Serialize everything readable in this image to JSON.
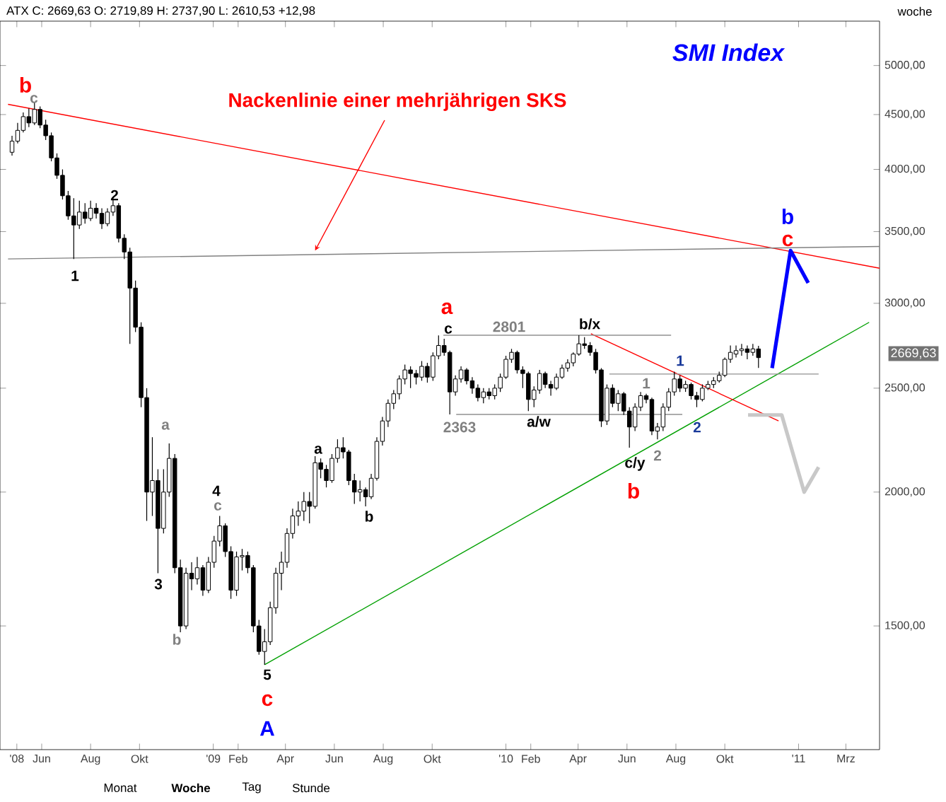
{
  "chart_data": {
    "type": "candlestick",
    "title": "SMI Index",
    "subtitle": "ATX C: 2669,63 O: 2719,89 H: 2737,90 L: 2610,53 +12,98",
    "log": true,
    "xlim": [
      "2008-04-10",
      "2011-04-12"
    ],
    "ylim": [
      1150,
      5500
    ],
    "xticks": [
      {
        "value": "2008-05-01",
        "label": "'08"
      },
      {
        "value": "2008-06-01",
        "label": "Jun"
      },
      {
        "value": "2008-08-01",
        "label": "Aug"
      },
      {
        "value": "2008-10-01",
        "label": "Okt"
      },
      {
        "value": "2009-01-01",
        "label": "'09"
      },
      {
        "value": "2009-02-01",
        "label": "Feb"
      },
      {
        "value": "2009-04-01",
        "label": "Apr"
      },
      {
        "value": "2009-06-01",
        "label": "Jun"
      },
      {
        "value": "2009-08-01",
        "label": "Aug"
      },
      {
        "value": "2009-10-01",
        "label": "Okt"
      },
      {
        "value": "2010-01-01",
        "label": "'10"
      },
      {
        "value": "2010-02-01",
        "label": "Feb"
      },
      {
        "value": "2010-04-01",
        "label": "Apr"
      },
      {
        "value": "2010-06-01",
        "label": "Jun"
      },
      {
        "value": "2010-08-01",
        "label": "Aug"
      },
      {
        "value": "2010-10-01",
        "label": "Okt"
      },
      {
        "value": "2011-01-01",
        "label": "'11"
      },
      {
        "value": "2011-03-01",
        "label": "Mrz"
      }
    ],
    "yticks": [
      {
        "value": 1500,
        "label": "1500,00"
      },
      {
        "value": 2000,
        "label": "2000,00"
      },
      {
        "value": 2500,
        "label": "2500,00"
      },
      {
        "value": 3000,
        "label": "3000,00"
      },
      {
        "value": 3500,
        "label": "3500,00"
      },
      {
        "value": 4000,
        "label": "4000,00"
      },
      {
        "value": 4500,
        "label": "4500,00"
      },
      {
        "value": 5000,
        "label": "5000,00"
      }
    ],
    "x": [
      "2008-04-25",
      "2008-05-02",
      "2008-05-09",
      "2008-05-16",
      "2008-05-23",
      "2008-05-30",
      "2008-06-06",
      "2008-06-13",
      "2008-06-20",
      "2008-06-27",
      "2008-07-04",
      "2008-07-11",
      "2008-07-18",
      "2008-07-25",
      "2008-08-01",
      "2008-08-08",
      "2008-08-15",
      "2008-08-22",
      "2008-08-29",
      "2008-09-05",
      "2008-09-12",
      "2008-09-19",
      "2008-09-26",
      "2008-10-03",
      "2008-10-10",
      "2008-10-17",
      "2008-10-24",
      "2008-10-31",
      "2008-11-07",
      "2008-11-14",
      "2008-11-21",
      "2008-11-28",
      "2008-12-05",
      "2008-12-12",
      "2008-12-19",
      "2008-12-26",
      "2009-01-02",
      "2009-01-09",
      "2009-01-16",
      "2009-01-23",
      "2009-01-30",
      "2009-02-06",
      "2009-02-13",
      "2009-02-20",
      "2009-02-27",
      "2009-03-06",
      "2009-03-13",
      "2009-03-20",
      "2009-03-27",
      "2009-04-03",
      "2009-04-10",
      "2009-04-17",
      "2009-04-24",
      "2009-05-01",
      "2009-05-08",
      "2009-05-15",
      "2009-05-22",
      "2009-05-29",
      "2009-06-05",
      "2009-06-12",
      "2009-06-19",
      "2009-06-26",
      "2009-07-03",
      "2009-07-10",
      "2009-07-17",
      "2009-07-24",
      "2009-07-31",
      "2009-08-07",
      "2009-08-14",
      "2009-08-21",
      "2009-08-28",
      "2009-09-04",
      "2009-09-11",
      "2009-09-18",
      "2009-09-25",
      "2009-10-02",
      "2009-10-09",
      "2009-10-16",
      "2009-10-23",
      "2009-10-30",
      "2009-11-06",
      "2009-11-13",
      "2009-11-20",
      "2009-11-27",
      "2009-12-04",
      "2009-12-11",
      "2009-12-18",
      "2009-12-25",
      "2010-01-01",
      "2010-01-08",
      "2010-01-15",
      "2010-01-22",
      "2010-01-29",
      "2010-02-05",
      "2010-02-12",
      "2010-02-19",
      "2010-02-26",
      "2010-03-05",
      "2010-03-12",
      "2010-03-19",
      "2010-03-26",
      "2010-04-02",
      "2010-04-09",
      "2010-04-16",
      "2010-04-23",
      "2010-04-30",
      "2010-05-07",
      "2010-05-14",
      "2010-05-21",
      "2010-05-28",
      "2010-06-04",
      "2010-06-11",
      "2010-06-18",
      "2010-06-25",
      "2010-07-02",
      "2010-07-09",
      "2010-07-16",
      "2010-07-23",
      "2010-07-30",
      "2010-08-06",
      "2010-08-13",
      "2010-08-20",
      "2010-08-27",
      "2010-09-03",
      "2010-09-10",
      "2010-09-17",
      "2010-09-24",
      "2010-10-01",
      "2010-10-08",
      "2010-10-15",
      "2010-10-22",
      "2010-10-29",
      "2010-11-05",
      "2010-11-12"
    ],
    "ohlc": [
      [
        4150,
        4300,
        4120,
        4250
      ],
      [
        4250,
        4420,
        4230,
        4350
      ],
      [
        4350,
        4520,
        4330,
        4480
      ],
      [
        4480,
        4560,
        4380,
        4420
      ],
      [
        4420,
        4620,
        4400,
        4550
      ],
      [
        4550,
        4580,
        4370,
        4400
      ],
      [
        4400,
        4450,
        4260,
        4300
      ],
      [
        4300,
        4330,
        4070,
        4100
      ],
      [
        4100,
        4140,
        3920,
        3950
      ],
      [
        3950,
        4000,
        3750,
        3780
      ],
      [
        3780,
        3820,
        3590,
        3620
      ],
      [
        3620,
        3760,
        3300,
        3550
      ],
      [
        3550,
        3740,
        3520,
        3650
      ],
      [
        3650,
        3720,
        3560,
        3600
      ],
      [
        3600,
        3740,
        3580,
        3680
      ],
      [
        3680,
        3720,
        3600,
        3640
      ],
      [
        3640,
        3680,
        3520,
        3560
      ],
      [
        3560,
        3680,
        3540,
        3650
      ],
      [
        3650,
        3750,
        3620,
        3700
      ],
      [
        3700,
        3720,
        3420,
        3450
      ],
      [
        3450,
        3480,
        3300,
        3350
      ],
      [
        3350,
        3380,
        2750,
        3100
      ],
      [
        3100,
        3150,
        2820,
        2850
      ],
      [
        2850,
        2880,
        2400,
        2450
      ],
      [
        2450,
        2500,
        1880,
        2000
      ],
      [
        2000,
        2250,
        1900,
        2050
      ],
      [
        2050,
        2100,
        1680,
        1850
      ],
      [
        1850,
        2100,
        1830,
        2000
      ],
      [
        2000,
        2220,
        1980,
        2150
      ],
      [
        2150,
        2170,
        1680,
        1700
      ],
      [
        1700,
        1730,
        1480,
        1500
      ],
      [
        1500,
        1700,
        1490,
        1680
      ],
      [
        1680,
        1720,
        1620,
        1660
      ],
      [
        1660,
        1740,
        1640,
        1700
      ],
      [
        1700,
        1710,
        1600,
        1620
      ],
      [
        1620,
        1740,
        1610,
        1720
      ],
      [
        1720,
        1820,
        1700,
        1800
      ],
      [
        1800,
        1900,
        1780,
        1860
      ],
      [
        1860,
        1870,
        1740,
        1760
      ],
      [
        1760,
        1780,
        1590,
        1620
      ],
      [
        1620,
        1760,
        1600,
        1740
      ],
      [
        1740,
        1770,
        1690,
        1745
      ],
      [
        1745,
        1760,
        1680,
        1700
      ],
      [
        1700,
        1710,
        1480,
        1500
      ],
      [
        1500,
        1520,
        1410,
        1420
      ],
      [
        1420,
        1490,
        1380,
        1450
      ],
      [
        1450,
        1580,
        1440,
        1560
      ],
      [
        1560,
        1700,
        1540,
        1680
      ],
      [
        1680,
        1760,
        1620,
        1720
      ],
      [
        1720,
        1850,
        1700,
        1830
      ],
      [
        1830,
        1930,
        1810,
        1900
      ],
      [
        1900,
        1960,
        1860,
        1920
      ],
      [
        1920,
        2000,
        1880,
        1960
      ],
      [
        1960,
        2000,
        1870,
        1940
      ],
      [
        1940,
        2160,
        1930,
        2130
      ],
      [
        2130,
        2150,
        2060,
        2100
      ],
      [
        2100,
        2120,
        2020,
        2050
      ],
      [
        2050,
        2170,
        2040,
        2150
      ],
      [
        2150,
        2240,
        2130,
        2200
      ],
      [
        2200,
        2250,
        2150,
        2180
      ],
      [
        2180,
        2190,
        2030,
        2050
      ],
      [
        2050,
        2080,
        1950,
        2000
      ],
      [
        2000,
        2050,
        1960,
        2010
      ],
      [
        2010,
        2020,
        1940,
        1980
      ],
      [
        1980,
        2080,
        1970,
        2060
      ],
      [
        2060,
        2250,
        2050,
        2230
      ],
      [
        2230,
        2350,
        2210,
        2330
      ],
      [
        2330,
        2440,
        2300,
        2420
      ],
      [
        2420,
        2490,
        2390,
        2470
      ],
      [
        2470,
        2570,
        2440,
        2550
      ],
      [
        2550,
        2630,
        2520,
        2600
      ],
      [
        2600,
        2620,
        2500,
        2580
      ],
      [
        2580,
        2600,
        2520,
        2560
      ],
      [
        2560,
        2650,
        2540,
        2620
      ],
      [
        2620,
        2640,
        2530,
        2560
      ],
      [
        2560,
        2700,
        2540,
        2680
      ],
      [
        2680,
        2800,
        2660,
        2740
      ],
      [
        2740,
        2780,
        2680,
        2700
      ],
      [
        2700,
        2710,
        2363,
        2480
      ],
      [
        2480,
        2570,
        2460,
        2550
      ],
      [
        2550,
        2620,
        2530,
        2600
      ],
      [
        2600,
        2610,
        2520,
        2540
      ],
      [
        2540,
        2560,
        2470,
        2500
      ],
      [
        2500,
        2520,
        2430,
        2450
      ],
      [
        2450,
        2500,
        2420,
        2480
      ],
      [
        2480,
        2500,
        2440,
        2460
      ],
      [
        2460,
        2520,
        2440,
        2500
      ],
      [
        2500,
        2580,
        2480,
        2560
      ],
      [
        2560,
        2680,
        2550,
        2660
      ],
      [
        2660,
        2720,
        2640,
        2700
      ],
      [
        2700,
        2710,
        2580,
        2600
      ],
      [
        2600,
        2620,
        2500,
        2580
      ],
      [
        2580,
        2590,
        2380,
        2440
      ],
      [
        2440,
        2510,
        2400,
        2490
      ],
      [
        2490,
        2600,
        2470,
        2580
      ],
      [
        2580,
        2590,
        2500,
        2520
      ],
      [
        2520,
        2540,
        2460,
        2500
      ],
      [
        2500,
        2580,
        2490,
        2560
      ],
      [
        2560,
        2630,
        2550,
        2610
      ],
      [
        2610,
        2660,
        2590,
        2640
      ],
      [
        2640,
        2700,
        2620,
        2690
      ],
      [
        2690,
        2801,
        2680,
        2750
      ],
      [
        2750,
        2790,
        2720,
        2740
      ],
      [
        2740,
        2760,
        2680,
        2700
      ],
      [
        2700,
        2720,
        2580,
        2600
      ],
      [
        2600,
        2610,
        2300,
        2330
      ],
      [
        2330,
        2520,
        2310,
        2500
      ],
      [
        2500,
        2520,
        2400,
        2420
      ],
      [
        2420,
        2490,
        2380,
        2470
      ],
      [
        2470,
        2480,
        2360,
        2380
      ],
      [
        2380,
        2400,
        2200,
        2300
      ],
      [
        2300,
        2420,
        2280,
        2400
      ],
      [
        2400,
        2480,
        2380,
        2460
      ],
      [
        2460,
        2470,
        2420,
        2440
      ],
      [
        2440,
        2450,
        2260,
        2280
      ],
      [
        2280,
        2320,
        2240,
        2300
      ],
      [
        2300,
        2420,
        2280,
        2400
      ],
      [
        2400,
        2500,
        2380,
        2480
      ],
      [
        2480,
        2590,
        2460,
        2550
      ],
      [
        2550,
        2570,
        2480,
        2500
      ],
      [
        2500,
        2540,
        2480,
        2520
      ],
      [
        2520,
        2530,
        2440,
        2460
      ],
      [
        2460,
        2480,
        2400,
        2440
      ],
      [
        2440,
        2520,
        2430,
        2500
      ],
      [
        2500,
        2540,
        2490,
        2520
      ],
      [
        2520,
        2560,
        2500,
        2540
      ],
      [
        2540,
        2590,
        2530,
        2570
      ],
      [
        2570,
        2670,
        2560,
        2660
      ],
      [
        2660,
        2740,
        2640,
        2700
      ],
      [
        2690,
        2740,
        2670,
        2710
      ],
      [
        2710,
        2750,
        2680,
        2720
      ],
      [
        2720,
        2740,
        2660,
        2700
      ],
      [
        2700,
        2750,
        2680,
        2720
      ],
      [
        2719.89,
        2737.9,
        2610.53,
        2669.63
      ]
    ],
    "series": [
      {
        "type": "line",
        "color": "#ff0000",
        "x": [
          "2008-04-20",
          "2011-04-12"
        ],
        "values": [
          4600,
          3235
        ]
      },
      {
        "type": "line",
        "color": "#808080",
        "x": [
          "2008-04-20",
          "2011-04-12"
        ],
        "values": [
          3300,
          3390
        ]
      },
      {
        "type": "line",
        "color": "#00a000",
        "x": [
          "2009-03-06",
          "2011-03-30"
        ],
        "values": [
          1380,
          2880
        ]
      },
      {
        "type": "line",
        "color": "#ff0000",
        "x": [
          "2010-04-17",
          "2010-12-07"
        ],
        "values": [
          2810,
          2330
        ]
      },
      {
        "type": "line",
        "color": "#909090",
        "x": [
          "2009-10-15",
          "2010-07-26"
        ],
        "values": [
          2801,
          2801
        ]
      },
      {
        "type": "line",
        "color": "#909090",
        "x": [
          "2009-10-31",
          "2010-08-09"
        ],
        "values": [
          2363,
          2363
        ]
      },
      {
        "type": "line",
        "color": "#909090",
        "x": [
          "2010-05-10",
          "2011-01-26"
        ],
        "values": [
          2577,
          2577
        ]
      },
      {
        "type": "line",
        "color": "#0000ff",
        "x": [
          "2010-11-29",
          "2010-12-22",
          "2011-01-13"
        ],
        "values": [
          2610,
          3360,
          3135
        ]
      },
      {
        "type": "line",
        "color": "#c8c8c8",
        "x": [
          "2010-10-30",
          "2010-12-11",
          "2011-01-08",
          "2011-01-26"
        ],
        "values": [
          2360,
          2360,
          2000,
          2110
        ]
      }
    ],
    "annotations": [
      {
        "text": "Nackenlinie einer mehrjährigen SKS",
        "x": "2009-05-08",
        "y": 3360
      },
      "woche",
      "Monat",
      "Woche",
      "Tag",
      "Stunde",
      "2669,63",
      "b",
      "c",
      "1",
      "2",
      "3",
      "a",
      "b",
      "4",
      "c",
      "5",
      "c",
      "A",
      "a",
      "b",
      "a",
      "c",
      "2801",
      "2363",
      "a/w",
      "b/x",
      "c/y",
      "b",
      "1",
      "2",
      "1",
      "2",
      "b",
      "c"
    ]
  }
}
